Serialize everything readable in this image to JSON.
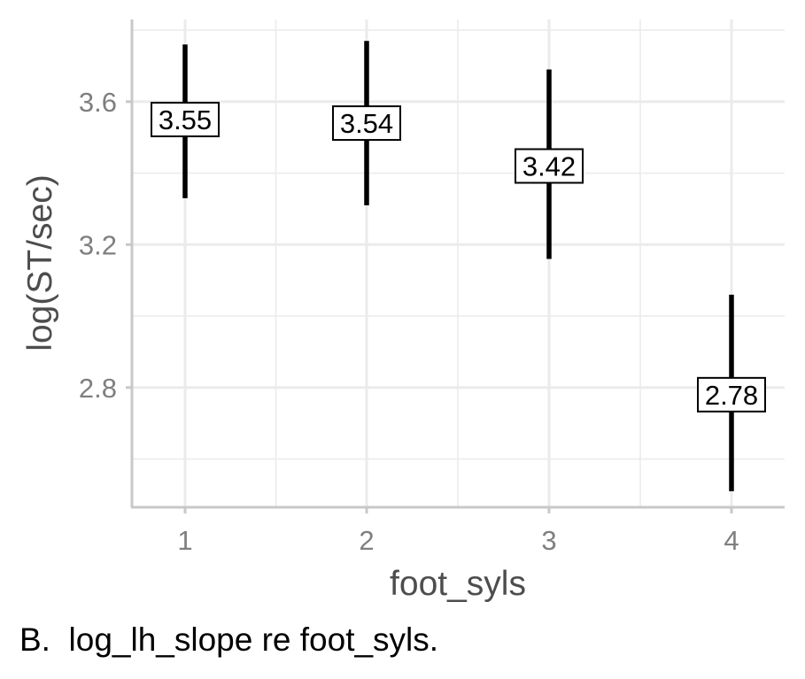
{
  "chart_data": {
    "type": "pointrange",
    "xlabel": "foot_syls",
    "ylabel": "log(ST/sec)",
    "categories": [
      "1",
      "2",
      "3",
      "4"
    ],
    "y_ticks": [
      2.8,
      3.2,
      3.6
    ],
    "y_tick_labels": [
      "2.8",
      "3.2",
      "3.6"
    ],
    "ylim": [
      2.465,
      3.83
    ],
    "grid": true,
    "points": [
      {
        "x": "1",
        "y": 3.55,
        "lower": 3.33,
        "upper": 3.76,
        "label": "3.55"
      },
      {
        "x": "2",
        "y": 3.54,
        "lower": 3.31,
        "upper": 3.77,
        "label": "3.54"
      },
      {
        "x": "3",
        "y": 3.42,
        "lower": 3.16,
        "upper": 3.69,
        "label": "3.42"
      },
      {
        "x": "4",
        "y": 2.78,
        "lower": 2.51,
        "upper": 3.06,
        "label": "2.78"
      }
    ]
  },
  "caption": "B.  log_lh_slope re foot_syls."
}
